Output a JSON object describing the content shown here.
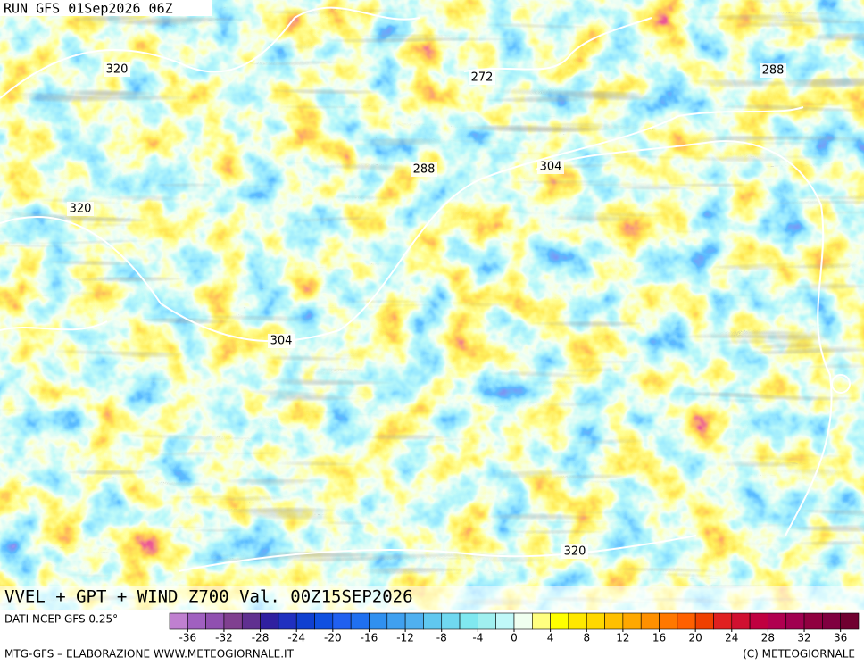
{
  "header": {
    "run": "RUN GFS 01Sep2026 06Z"
  },
  "contour_labels": [
    "320",
    "272",
    "288",
    "320",
    "288",
    "304",
    "304",
    "320"
  ],
  "title": "VVEL + GPT + WIND Z700 Val. 00Z15SEP2026",
  "source": "DATI NCEP GFS 0.25°",
  "colorbar": {
    "range": [
      -38,
      38
    ],
    "ticks": [
      -36,
      -32,
      -28,
      -24,
      -20,
      -16,
      -12,
      -8,
      -4,
      0,
      4,
      8,
      12,
      16,
      20,
      24,
      28,
      32,
      36
    ],
    "colors": [
      "#c080d0",
      "#a060c0",
      "#9050b0",
      "#804090",
      "#603090",
      "#3020a0",
      "#2030c0",
      "#1040d0",
      "#1050e0",
      "#2060f0",
      "#2070f0",
      "#3090f0",
      "#40a0f0",
      "#50b0f0",
      "#60c8f0",
      "#70d8f0",
      "#80e8f0",
      "#a0f0f0",
      "#c0f8f8",
      "#f0fff0",
      "#ffff80",
      "#ffff00",
      "#ffe800",
      "#ffd800",
      "#ffc000",
      "#ffa800",
      "#ff9000",
      "#ff7800",
      "#ff6000",
      "#f04000",
      "#e02020",
      "#d01030",
      "#c00040",
      "#b00050",
      "#a00050",
      "#900040",
      "#800040",
      "#700030"
    ]
  },
  "footer": {
    "left": "MTG-GFS – ELABORAZIONE WWW.METEOGIORNALE.IT",
    "right": "(C) METEOGIORNALE"
  }
}
